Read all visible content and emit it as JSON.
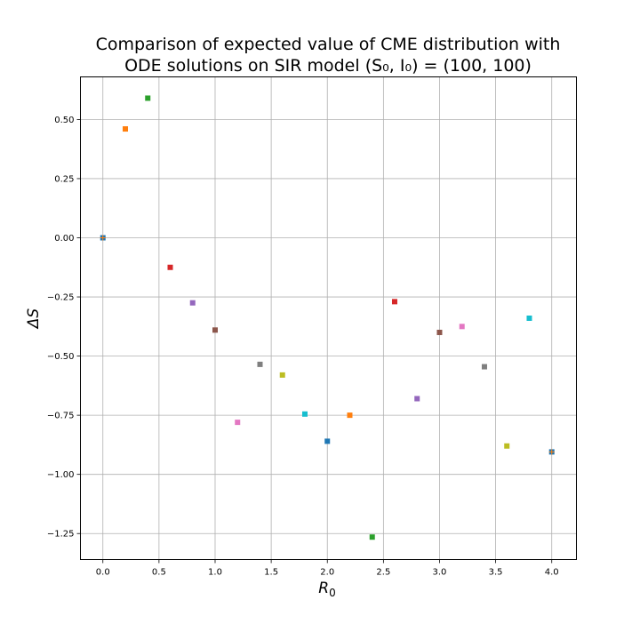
{
  "chart_data": {
    "type": "scatter",
    "title_line1": "Comparison of expected value of CME distribution with",
    "title_line2_prefix": "ODE solutions on SIR model ",
    "title_line2_math": "(S₀, I₀) = (100, 100)",
    "xlabel_base": "R",
    "xlabel_sub": "0",
    "ylabel": "ΔS",
    "xlim": [
      -0.2,
      4.22
    ],
    "ylim": [
      -1.36,
      0.68
    ],
    "xticks": [
      0.0,
      0.5,
      1.0,
      1.5,
      2.0,
      2.5,
      3.0,
      3.5,
      4.0
    ],
    "xtick_labels": [
      "0.0",
      "0.5",
      "1.0",
      "1.5",
      "2.0",
      "2.5",
      "3.0",
      "3.5",
      "4.0"
    ],
    "yticks": [
      0.5,
      0.25,
      0.0,
      -0.25,
      -0.5,
      -0.75,
      -1.0,
      -1.25
    ],
    "ytick_labels": [
      "0.50",
      "0.25",
      "0.00",
      "−0.25",
      "−0.50",
      "−0.75",
      "−1.00",
      "−1.25"
    ],
    "grid": true,
    "marker": "square",
    "points": [
      {
        "x": 0.0,
        "y": 0.0,
        "color": "#1f77b4",
        "color2": "#ff7f0e"
      },
      {
        "x": 0.2,
        "y": 0.46,
        "color": "#ff7f0e"
      },
      {
        "x": 0.4,
        "y": 0.59,
        "color": "#2ca02c"
      },
      {
        "x": 0.6,
        "y": -0.125,
        "color": "#d62728"
      },
      {
        "x": 0.8,
        "y": -0.275,
        "color": "#9467bd"
      },
      {
        "x": 1.0,
        "y": -0.39,
        "color": "#8c564b"
      },
      {
        "x": 1.2,
        "y": -0.78,
        "color": "#e377c2"
      },
      {
        "x": 1.4,
        "y": -0.535,
        "color": "#7f7f7f"
      },
      {
        "x": 1.6,
        "y": -0.58,
        "color": "#bcbd22"
      },
      {
        "x": 1.8,
        "y": -0.745,
        "color": "#17becf"
      },
      {
        "x": 2.0,
        "y": -0.86,
        "color": "#1f77b4"
      },
      {
        "x": 2.2,
        "y": -0.75,
        "color": "#ff7f0e"
      },
      {
        "x": 2.4,
        "y": -1.265,
        "color": "#2ca02c"
      },
      {
        "x": 2.6,
        "y": -0.27,
        "color": "#d62728"
      },
      {
        "x": 2.8,
        "y": -0.68,
        "color": "#9467bd"
      },
      {
        "x": 3.0,
        "y": -0.4,
        "color": "#8c564b"
      },
      {
        "x": 3.2,
        "y": -0.375,
        "color": "#e377c2"
      },
      {
        "x": 3.4,
        "y": -0.545,
        "color": "#7f7f7f"
      },
      {
        "x": 3.6,
        "y": -0.88,
        "color": "#bcbd22"
      },
      {
        "x": 3.8,
        "y": -0.34,
        "color": "#17becf"
      },
      {
        "x": 4.0,
        "y": -0.905,
        "color": "#1f77b4",
        "color2": "#ff7f0e"
      }
    ]
  }
}
